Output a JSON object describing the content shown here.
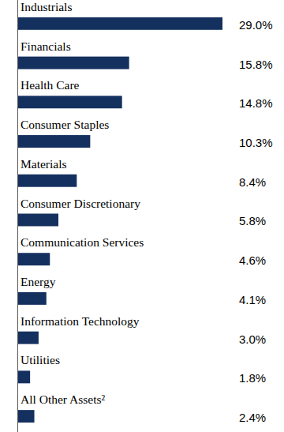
{
  "chart_data": {
    "type": "bar",
    "orientation": "horizontal",
    "categories": [
      "Industrials",
      "Financials",
      "Health Care",
      "Consumer Staples",
      "Materials",
      "Consumer Discretionary",
      "Communication Services",
      "Energy",
      "Information Technology",
      "Utilities",
      "All Other Assets²"
    ],
    "values": [
      29.0,
      15.8,
      14.8,
      10.3,
      8.4,
      5.8,
      4.6,
      4.1,
      3.0,
      1.8,
      2.4
    ],
    "value_labels": [
      "29.0%",
      "15.8%",
      "14.8%",
      "10.3%",
      "8.4%",
      "5.8%",
      "4.6%",
      "4.1%",
      "3.0%",
      "1.8%",
      "2.4%"
    ],
    "color": "#14305e",
    "xlim": [
      0,
      29.0
    ],
    "data_labels": true,
    "tick_labels": "y",
    "grid": false
  }
}
